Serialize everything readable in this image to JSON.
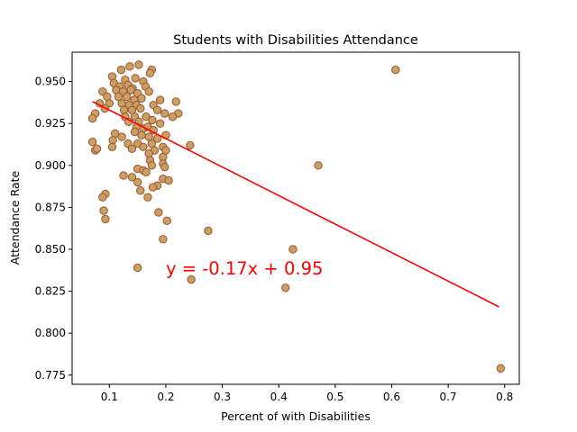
{
  "chart_data": {
    "type": "scatter",
    "title": "Students with Disabilities Attendance",
    "xlabel": "Percent of with Disabilities",
    "ylabel": "Attendance Rate",
    "xlim": [
      0.034,
      0.826
    ],
    "ylim": [
      0.7695,
      0.9675
    ],
    "xticks": [
      0.1,
      0.2,
      0.3,
      0.4,
      0.5,
      0.6,
      0.7,
      0.8
    ],
    "xtick_labels": [
      "0.1",
      "0.2",
      "0.3",
      "0.4",
      "0.5",
      "0.6",
      "0.7",
      "0.8"
    ],
    "yticks": [
      0.775,
      0.8,
      0.825,
      0.85,
      0.875,
      0.9,
      0.925,
      0.95
    ],
    "ytick_labels": [
      "0.775",
      "0.800",
      "0.825",
      "0.850",
      "0.875",
      "0.900",
      "0.925",
      "0.950"
    ],
    "grid": false,
    "marker_color": "#c8a063",
    "marker_edge_color": "#a0522d",
    "regression": {
      "slope": -0.17,
      "intercept": 0.95,
      "x_range": [
        0.07,
        0.79
      ],
      "color": "#ff0000",
      "equation": "y = -0.17x + 0.95",
      "equation_position": [
        0.2,
        0.835
      ]
    },
    "points": [
      [
        0.121,
        0.957
      ],
      [
        0.136,
        0.959
      ],
      [
        0.152,
        0.96
      ],
      [
        0.175,
        0.957
      ],
      [
        0.172,
        0.955
      ],
      [
        0.105,
        0.953
      ],
      [
        0.128,
        0.951
      ],
      [
        0.146,
        0.952
      ],
      [
        0.16,
        0.95
      ],
      [
        0.108,
        0.949
      ],
      [
        0.118,
        0.947
      ],
      [
        0.133,
        0.948
      ],
      [
        0.141,
        0.946
      ],
      [
        0.164,
        0.947
      ],
      [
        0.112,
        0.945
      ],
      [
        0.124,
        0.944
      ],
      [
        0.138,
        0.945
      ],
      [
        0.15,
        0.943
      ],
      [
        0.17,
        0.944
      ],
      [
        0.088,
        0.944
      ],
      [
        0.096,
        0.941
      ],
      [
        0.116,
        0.941
      ],
      [
        0.131,
        0.941
      ],
      [
        0.144,
        0.939
      ],
      [
        0.157,
        0.94
      ],
      [
        0.19,
        0.939
      ],
      [
        0.218,
        0.938
      ],
      [
        0.083,
        0.937
      ],
      [
        0.1,
        0.937
      ],
      [
        0.122,
        0.937
      ],
      [
        0.135,
        0.936
      ],
      [
        0.148,
        0.936
      ],
      [
        0.178,
        0.936
      ],
      [
        0.092,
        0.934
      ],
      [
        0.126,
        0.933
      ],
      [
        0.14,
        0.933
      ],
      [
        0.155,
        0.934
      ],
      [
        0.185,
        0.933
      ],
      [
        0.198,
        0.931
      ],
      [
        0.222,
        0.931
      ],
      [
        0.075,
        0.931
      ],
      [
        0.07,
        0.928
      ],
      [
        0.128,
        0.929
      ],
      [
        0.145,
        0.929
      ],
      [
        0.165,
        0.929
      ],
      [
        0.212,
        0.929
      ],
      [
        0.176,
        0.927
      ],
      [
        0.134,
        0.926
      ],
      [
        0.152,
        0.926
      ],
      [
        0.19,
        0.925
      ],
      [
        0.148,
        0.923
      ],
      [
        0.16,
        0.922
      ],
      [
        0.168,
        0.923
      ],
      [
        0.178,
        0.921
      ],
      [
        0.145,
        0.92
      ],
      [
        0.157,
        0.918
      ],
      [
        0.17,
        0.917
      ],
      [
        0.2,
        0.918
      ],
      [
        0.11,
        0.919
      ],
      [
        0.122,
        0.917
      ],
      [
        0.185,
        0.916
      ],
      [
        0.07,
        0.914
      ],
      [
        0.106,
        0.915
      ],
      [
        0.133,
        0.913
      ],
      [
        0.15,
        0.913
      ],
      [
        0.175,
        0.913
      ],
      [
        0.243,
        0.912
      ],
      [
        0.105,
        0.911
      ],
      [
        0.14,
        0.91
      ],
      [
        0.16,
        0.911
      ],
      [
        0.18,
        0.909
      ],
      [
        0.195,
        0.911
      ],
      [
        0.2,
        0.909
      ],
      [
        0.075,
        0.909
      ],
      [
        0.078,
        0.91
      ],
      [
        0.17,
        0.907
      ],
      [
        0.195,
        0.905
      ],
      [
        0.172,
        0.903
      ],
      [
        0.195,
        0.901
      ],
      [
        0.198,
        0.899
      ],
      [
        0.15,
        0.898
      ],
      [
        0.175,
        0.9
      ],
      [
        0.16,
        0.897
      ],
      [
        0.165,
        0.896
      ],
      [
        0.125,
        0.894
      ],
      [
        0.14,
        0.893
      ],
      [
        0.195,
        0.892
      ],
      [
        0.205,
        0.891
      ],
      [
        0.15,
        0.89
      ],
      [
        0.185,
        0.888
      ],
      [
        0.177,
        0.887
      ],
      [
        0.155,
        0.885
      ],
      [
        0.093,
        0.883
      ],
      [
        0.088,
        0.881
      ],
      [
        0.168,
        0.881
      ],
      [
        0.09,
        0.873
      ],
      [
        0.187,
        0.872
      ],
      [
        0.093,
        0.868
      ],
      [
        0.202,
        0.867
      ],
      [
        0.275,
        0.861
      ],
      [
        0.195,
        0.856
      ],
      [
        0.425,
        0.85
      ],
      [
        0.15,
        0.839
      ],
      [
        0.245,
        0.832
      ],
      [
        0.412,
        0.827
      ],
      [
        0.47,
        0.9
      ],
      [
        0.607,
        0.957
      ],
      [
        0.793,
        0.779
      ]
    ]
  }
}
